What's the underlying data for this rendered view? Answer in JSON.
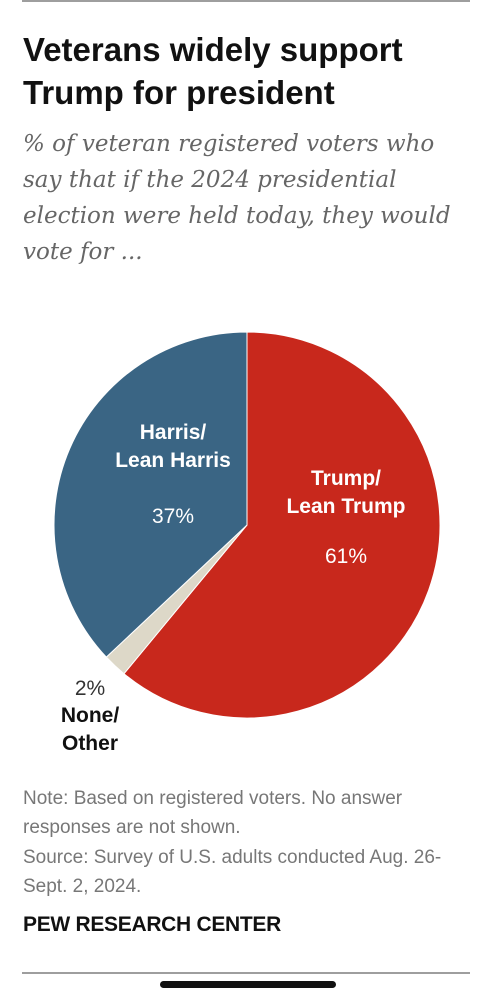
{
  "header": {
    "title": "Veterans widely support Trump for president",
    "subtitle": "% of veteran registered voters who say that if the 2024 presidential election were held today, they would vote for ..."
  },
  "chart_data": {
    "type": "pie",
    "title": "Veterans widely support Trump for president",
    "subtitle": "% of veteran registered voters who say that if the 2024 presidential election were held today, they would vote for ...",
    "slices": [
      {
        "label_lines": [
          "Trump/",
          "Lean Trump"
        ],
        "value": 61,
        "value_label": "61%",
        "color": "#c8281c"
      },
      {
        "label_lines": [
          "None/",
          "Other"
        ],
        "value": 2,
        "value_label": "2%",
        "color": "#ddd8c8"
      },
      {
        "label_lines": [
          "Harris/",
          "Lean Harris"
        ],
        "value": 37,
        "value_label": "37%",
        "color": "#3a6584"
      }
    ]
  },
  "footer": {
    "note": "Note: Based on registered voters. No answer responses are not shown.",
    "source": "Source: Survey of U.S. adults conducted Aug. 26-Sept. 2, 2024.",
    "brand": "PEW RESEARCH CENTER"
  }
}
